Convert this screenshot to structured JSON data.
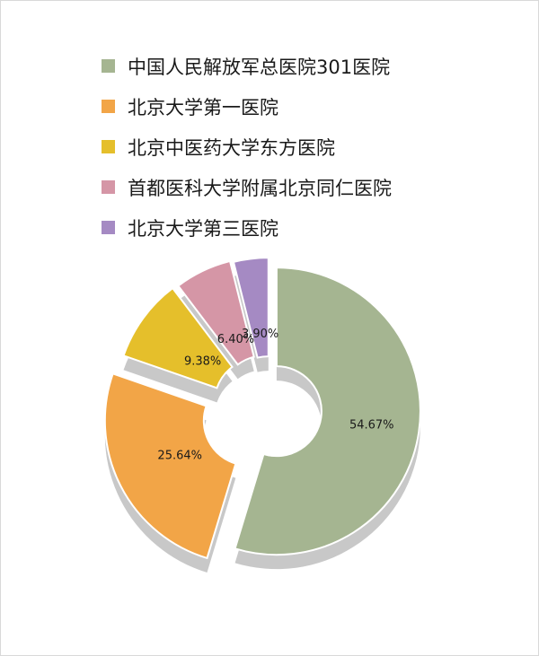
{
  "chart_data": {
    "type": "pie",
    "variant": "exploded-donut",
    "categories": [
      "中国人民解放军总医院301医院",
      "北京大学第一医院",
      "北京中医药大学东方医院",
      "首都医科大学附属北京同仁医院",
      "北京大学第三医院"
    ],
    "values": [
      54.67,
      25.64,
      9.38,
      6.4,
      3.9
    ],
    "value_labels": [
      "54.67%",
      "25.64%",
      "9.38%",
      "6.40%",
      "3.90%"
    ],
    "colors": [
      "#a5b591",
      "#f2a547",
      "#e5bf2b",
      "#d596a6",
      "#a58ac3"
    ],
    "legend_position": "top",
    "title": ""
  }
}
